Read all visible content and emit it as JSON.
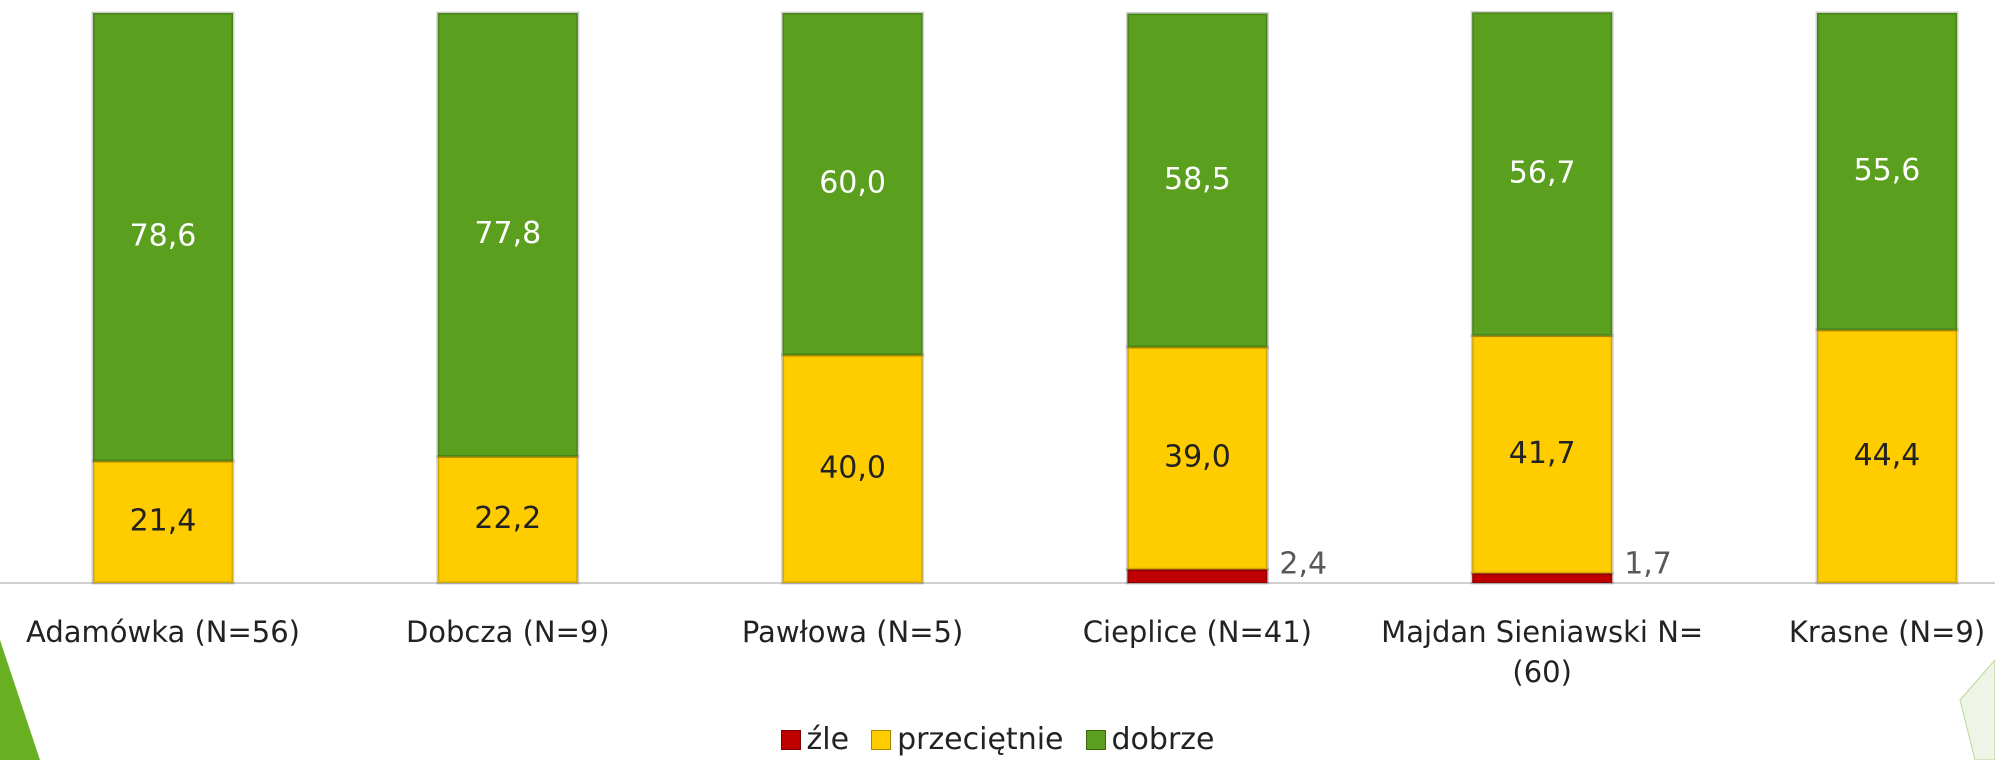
{
  "chart_data": {
    "type": "stacked_bar",
    "categories": [
      "Adamówka (N=56)",
      "Dobcza (N=9)",
      "Pawłowa (N=5)",
      "Cieplice (N=41)",
      "Majdan Sieniawski N=(60)",
      "Krasne (N=9)"
    ],
    "series": [
      {
        "name": "źle",
        "color": "#c00000",
        "values": [
          0,
          0,
          0,
          2.4,
          1.7,
          0
        ],
        "value_labels": [
          null,
          null,
          null,
          "2,4",
          "1,7",
          null
        ]
      },
      {
        "name": "przeciętnie",
        "color": "#ffcc00",
        "values": [
          21.4,
          22.2,
          40.0,
          39.0,
          41.7,
          44.4
        ],
        "value_labels": [
          "21,4",
          "22,2",
          "40,0",
          "39,0",
          "41,7",
          "44,4"
        ]
      },
      {
        "name": "dobrze",
        "color": "#5aa01e",
        "values": [
          78.6,
          77.8,
          60.0,
          58.5,
          56.7,
          55.6
        ],
        "value_labels": [
          "78,6",
          "77,8",
          "60,0",
          "58,5",
          "56,7",
          "55,6"
        ]
      }
    ],
    "ylim": [
      0,
      100
    ],
    "legend": "bottom"
  }
}
